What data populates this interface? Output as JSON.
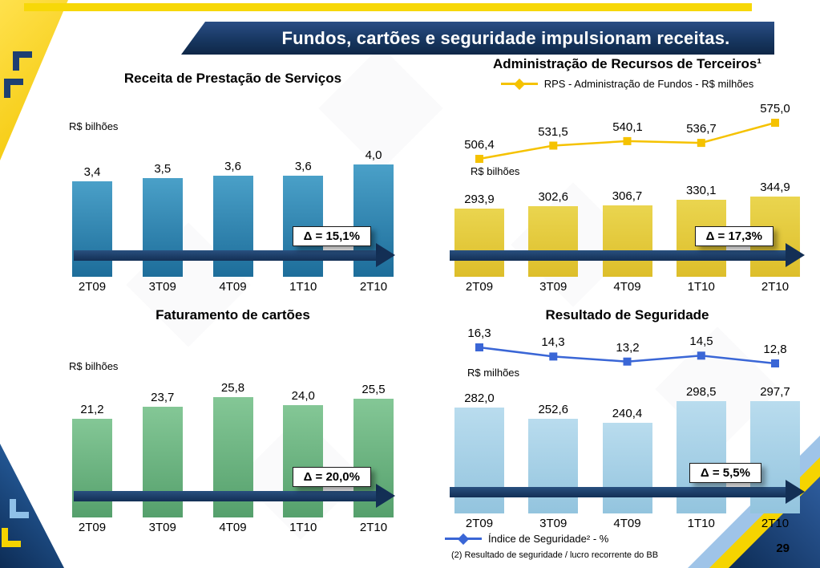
{
  "slide": {
    "title": "Fundos, cartões e seguridade impulsionam receitas.",
    "page_number": "29",
    "footnote": "(2) Resultado de seguridade / lucro recorrente do BB"
  },
  "colors": {
    "banner_navy": "#16355e",
    "accent_yellow": "#f7d808",
    "arrow_navy": "#132f55"
  },
  "chart_data": [
    {
      "type": "bar",
      "title": "Receita de Prestação de Serviços",
      "ylabel": "R$ bilhões",
      "categories": [
        "2T09",
        "3T09",
        "4T09",
        "1T10",
        "2T10"
      ],
      "values": [
        3.4,
        3.5,
        3.6,
        3.6,
        4.0
      ],
      "value_labels": [
        "3,4",
        "3,5",
        "3,6",
        "3,6",
        "4,0"
      ],
      "delta_label": "Δ = 15,1%",
      "bar_color_top": "#4aa0c8",
      "bar_color_bottom": "#1d6d9a",
      "bar_max_height": 140
    },
    {
      "type": "bar+line",
      "title": "Administração de Recursos de Terceiros¹",
      "legend": "RPS - Administração de Fundos - R$ milhões",
      "legend_position": "top",
      "ylabel": "R$ bilhões",
      "categories": [
        "2T09",
        "3T09",
        "4T09",
        "1T10",
        "2T10"
      ],
      "values": [
        293.9,
        302.6,
        306.7,
        330.1,
        344.9
      ],
      "value_labels": [
        "293,9",
        "302,6",
        "306,7",
        "330,1",
        "344,9"
      ],
      "line_values": [
        506.4,
        531.5,
        540.1,
        536.7,
        575.0
      ],
      "line_labels": [
        "506,4",
        "531,5",
        "540,1",
        "536,7",
        "575,0"
      ],
      "line_color": "#f5c200",
      "delta_label": "Δ = 17,3%",
      "bar_color_top": "#ead54f",
      "bar_color_bottom": "#ddbe2a",
      "bar_max_height": 100
    },
    {
      "type": "bar",
      "title": "Faturamento de cartões",
      "ylabel": "R$ bilhões",
      "categories": [
        "2T09",
        "3T09",
        "4T09",
        "1T10",
        "2T10"
      ],
      "values": [
        21.2,
        23.7,
        25.8,
        24.0,
        25.5
      ],
      "value_labels": [
        "21,2",
        "23,7",
        "25,8",
        "24,0",
        "25,5"
      ],
      "delta_label": "Δ = 20,0%",
      "bar_color_top": "#84c796",
      "bar_color_bottom": "#55a06c",
      "bar_max_height": 150
    },
    {
      "type": "bar+line",
      "title": "Resultado de Seguridade",
      "legend": "Índice de Seguridade² - %",
      "legend_position": "bottom",
      "ylabel": "R$ milhões",
      "categories": [
        "2T09",
        "3T09",
        "4T09",
        "1T10",
        "2T10"
      ],
      "values": [
        282.0,
        252.6,
        240.4,
        298.5,
        297.7
      ],
      "value_labels": [
        "282,0",
        "252,6",
        "240,4",
        "298,5",
        "297,7"
      ],
      "line_values": [
        16.3,
        14.3,
        13.2,
        14.5,
        12.8
      ],
      "line_labels": [
        "16,3",
        "14,3",
        "13,2",
        "14,5",
        "12,8"
      ],
      "line_color": "#3a66d6",
      "delta_label": "Δ = 5,5%",
      "bar_color_top": "#b9dcee",
      "bar_color_bottom": "#93c4de",
      "bar_max_height": 140
    }
  ]
}
